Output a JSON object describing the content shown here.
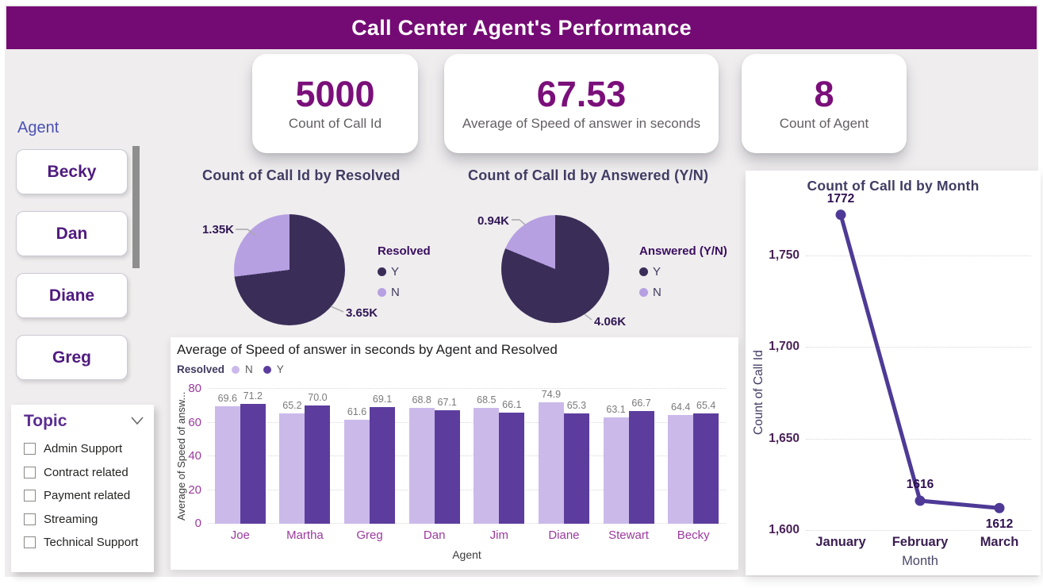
{
  "header": {
    "title": "Call Center Agent's Performance"
  },
  "kpis": [
    {
      "value": "5000",
      "label": "Count of Call Id"
    },
    {
      "value": "67.53",
      "label": "Average of Speed of answer in seconds"
    },
    {
      "value": "8",
      "label": "Count of Agent"
    }
  ],
  "agent_slicer": {
    "title": "Agent",
    "items": [
      "Becky",
      "Dan",
      "Diane",
      "Greg"
    ]
  },
  "topic_slicer": {
    "title": "Topic",
    "options": [
      "Admin Support",
      "Contract related",
      "Payment related",
      "Streaming",
      "Technical Support"
    ]
  },
  "colors": {
    "header_bg": "#740B74",
    "kpi_value": "#7A0F7A",
    "pie_dark": "#3A2E58",
    "pie_light": "#B6A0E2",
    "bar_light": "#CBB9EA",
    "bar_dark": "#5C3D9E",
    "line": "#4E3A96",
    "axis_label_purple": "#9B3A9E"
  },
  "chart_data": [
    {
      "type": "pie",
      "title": "Count of Call Id by Resolved",
      "legend_title": "Resolved",
      "legend_position": "right",
      "slices": [
        {
          "label": "Y",
          "value": 3650,
          "display": "3.65K",
          "color": "#3A2E58"
        },
        {
          "label": "N",
          "value": 1350,
          "display": "1.35K",
          "color": "#B6A0E2"
        }
      ]
    },
    {
      "type": "pie",
      "title": "Count of Call Id by Answered (Y/N)",
      "legend_title": "Answered (Y/N)",
      "legend_position": "right",
      "slices": [
        {
          "label": "Y",
          "value": 4060,
          "display": "4.06K",
          "color": "#3A2E58"
        },
        {
          "label": "N",
          "value": 940,
          "display": "0.94K",
          "color": "#B6A0E2"
        }
      ]
    },
    {
      "type": "bar",
      "title": "Average of Speed of answer in seconds by Agent and Resolved",
      "legend_title": "Resolved",
      "categories": [
        "Joe",
        "Martha",
        "Greg",
        "Dan",
        "Jim",
        "Diane",
        "Stewart",
        "Becky"
      ],
      "series": [
        {
          "name": "N",
          "color": "#CBB9EA",
          "values": [
            69.6,
            65.2,
            61.6,
            68.8,
            68.5,
            74.9,
            63.1,
            64.4
          ],
          "labels": [
            "69.6",
            "65.2",
            "61.6",
            "68.8",
            "68.5",
            "74.9",
            "63.1",
            "64.4"
          ]
        },
        {
          "name": "Y",
          "color": "#5C3D9E",
          "values": [
            71.2,
            70.0,
            69.1,
            67.1,
            66.1,
            65.3,
            66.7,
            65.4
          ],
          "labels": [
            "71.2",
            "70.0",
            "69.1",
            "67.1",
            "66.1",
            "65.3",
            "66.7",
            "65.4"
          ]
        }
      ],
      "xlabel": "Agent",
      "ylabel": "Average of Speed of answ...",
      "ylim": [
        0,
        80
      ],
      "yticks": [
        0,
        20,
        40,
        60,
        80
      ],
      "grid": true
    },
    {
      "type": "line",
      "title": "Count of Call Id by Month",
      "x": [
        "January",
        "February",
        "March"
      ],
      "values": [
        1772,
        1616,
        1612
      ],
      "labels": [
        "1772",
        "1616",
        "1612"
      ],
      "xlabel": "Month",
      "ylabel": "Count of Call Id",
      "ylim": [
        1600,
        1780
      ],
      "yticks": [
        1600,
        1650,
        1700,
        1750
      ],
      "ytick_labels": [
        "1,600",
        "1,650",
        "1,700",
        "1,750"
      ],
      "color": "#4E3A96",
      "grid": true
    }
  ]
}
